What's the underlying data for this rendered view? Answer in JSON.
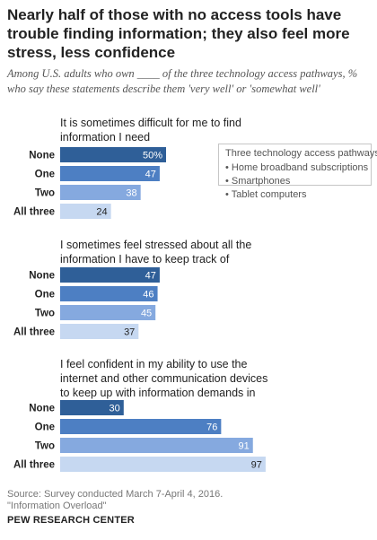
{
  "title": "Nearly half of those with no access tools have trouble finding information; they also feel more stress, less confidence",
  "subtitle": "Among U.S. adults who own ____ of the three technology access pathways, % who say these statements describe them 'very well' or 'somewhat well'",
  "legend": {
    "title": "Three technology access pathways:",
    "items": [
      "• Home broadband subscriptions",
      "• Smartphones",
      "• Tablet computers"
    ]
  },
  "footer": {
    "source": "Source: Survey conducted March 7-April 4, 2016.",
    "report": "\"Information Overload\"",
    "org": "PEW RESEARCH CENTER"
  },
  "colors": [
    "#2f5f98",
    "#4d7fc3",
    "#85a9df",
    "#c6d8f1"
  ],
  "chart_data": [
    {
      "type": "bar",
      "title": "It is sometimes difficult for me to find information I need",
      "categories": [
        "None",
        "One",
        "Two",
        "All three"
      ],
      "values": [
        50,
        47,
        38,
        24
      ],
      "value_labels": [
        "50%",
        "47",
        "38",
        "24"
      ]
    },
    {
      "type": "bar",
      "title": "I sometimes feel stressed about all the information I have to keep track of",
      "categories": [
        "None",
        "One",
        "Two",
        "All three"
      ],
      "values": [
        47,
        46,
        45,
        37
      ],
      "value_labels": [
        "47",
        "46",
        "45",
        "37"
      ]
    },
    {
      "type": "bar",
      "title": "I feel confident in my ability to use the internet and other communication devices to keep up with information demands in my life",
      "categories": [
        "None",
        "One",
        "Two",
        "All three"
      ],
      "values": [
        30,
        76,
        91,
        97
      ],
      "value_labels": [
        "30",
        "76",
        "91",
        "97"
      ]
    }
  ]
}
